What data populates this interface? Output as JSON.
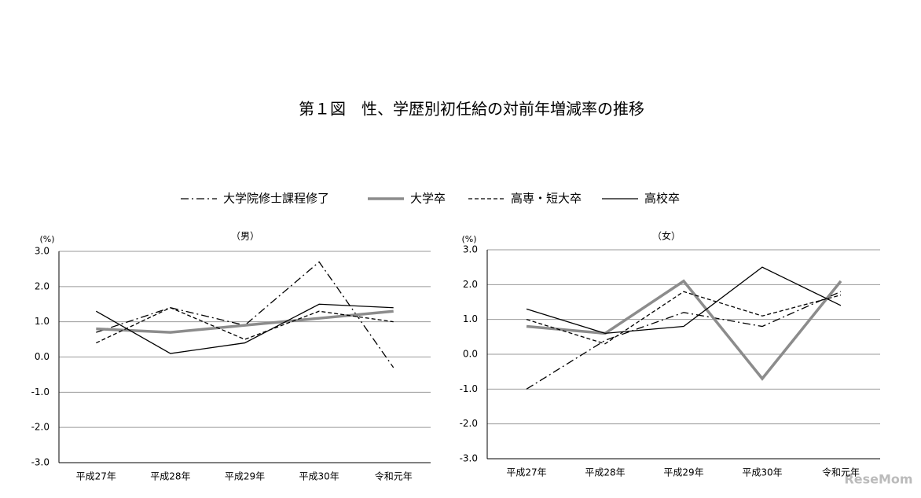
{
  "title": "第１図　性、学歴別初任給の対前年増減率の推移",
  "watermark": "ReseMom",
  "chart_data": [
    {
      "type": "line",
      "subtitle": "（男）",
      "y_unit": "(%)",
      "categories": [
        "平成27年",
        "平成28年",
        "平成29年",
        "平成30年",
        "令和元年"
      ],
      "series": [
        {
          "name": "大学院修士課程修了",
          "color": "#000000",
          "line_style": "dash-dot",
          "values": [
            0.7,
            1.4,
            0.9,
            2.7,
            -0.3
          ]
        },
        {
          "name": "大学卒",
          "color": "#8c8c8c",
          "line_style": "thick",
          "values": [
            0.8,
            0.7,
            0.9,
            1.1,
            1.3
          ]
        },
        {
          "name": "高専・短大卒",
          "color": "#000000",
          "line_style": "dashed",
          "values": [
            0.4,
            1.4,
            0.5,
            1.3,
            1.0
          ]
        },
        {
          "name": "高校卒",
          "color": "#000000",
          "line_style": "solid",
          "values": [
            1.3,
            0.1,
            0.4,
            1.5,
            1.4
          ]
        }
      ],
      "ylim": [
        -3,
        3
      ],
      "yticks": [
        {
          "value": -3,
          "label": "-3.0"
        },
        {
          "value": -2,
          "label": "-2.0"
        },
        {
          "value": -1,
          "label": "-1.0"
        },
        {
          "value": 0,
          "label": "0.0"
        },
        {
          "value": 1,
          "label": "1.0"
        },
        {
          "value": 2,
          "label": "2.0"
        },
        {
          "value": 3,
          "label": "3.0"
        }
      ],
      "grid": true
    },
    {
      "type": "line",
      "subtitle": "（女）",
      "y_unit": "(%)",
      "categories": [
        "平成27年",
        "平成28年",
        "平成29年",
        "平成30年",
        "令和元年"
      ],
      "series": [
        {
          "name": "大学院修士課程修了",
          "color": "#000000",
          "line_style": "dash-dot",
          "values": [
            -1.0,
            0.4,
            1.2,
            0.8,
            1.8
          ]
        },
        {
          "name": "大学卒",
          "color": "#8c8c8c",
          "line_style": "thick",
          "values": [
            0.8,
            0.6,
            2.1,
            -0.7,
            2.1
          ]
        },
        {
          "name": "高専・短大卒",
          "color": "#000000",
          "line_style": "dashed",
          "values": [
            1.0,
            0.3,
            1.8,
            1.1,
            1.7
          ]
        },
        {
          "name": "高校卒",
          "color": "#000000",
          "line_style": "solid",
          "values": [
            1.3,
            0.6,
            0.8,
            2.5,
            1.4
          ]
        }
      ],
      "ylim": [
        -3,
        3
      ],
      "yticks": [
        {
          "value": -3,
          "label": "-3.0"
        },
        {
          "value": -2,
          "label": "-2.0"
        },
        {
          "value": -1,
          "label": "-1.0"
        },
        {
          "value": 0,
          "label": "0.0"
        },
        {
          "value": 1,
          "label": "1.0"
        },
        {
          "value": 2,
          "label": "2.0"
        },
        {
          "value": 3,
          "label": "3.0"
        }
      ],
      "grid": true
    }
  ]
}
